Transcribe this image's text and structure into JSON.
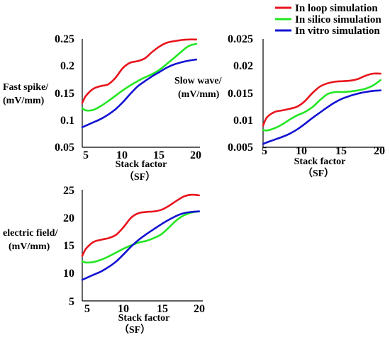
{
  "legend": {
    "placement": "top-right",
    "entries": [
      {
        "label": "In loop simulation",
        "color": "#e8141c"
      },
      {
        "label": "In silico simulation",
        "color": "#22e622"
      },
      {
        "label": "In vitro simulation",
        "color": "#1212d2"
      }
    ]
  },
  "chart_data": [
    {
      "type": "line",
      "ylabel": [
        "Fast spike/",
        "(mV/mm)"
      ],
      "xlabel": [
        "Stack factor",
        "（SF）"
      ],
      "xticks": [
        5,
        10,
        15,
        20
      ],
      "yticks": [
        "0.05",
        "0.1",
        "0.15",
        "0.2",
        "0.25"
      ],
      "xlim": [
        4.5,
        20.5
      ],
      "ylim": [
        0.05,
        0.25
      ],
      "grid": false,
      "series": [
        {
          "name": "In loop simulation",
          "color": "#e8141c",
          "x": [
            4.5,
            5,
            6,
            7,
            8,
            9,
            10,
            11,
            12,
            13,
            14,
            15,
            16,
            17,
            18,
            19,
            20
          ],
          "y": [
            0.132,
            0.145,
            0.158,
            0.163,
            0.166,
            0.178,
            0.196,
            0.206,
            0.209,
            0.214,
            0.226,
            0.236,
            0.243,
            0.246,
            0.248,
            0.249,
            0.249
          ]
        },
        {
          "name": "In silico simulation",
          "color": "#22e622",
          "x": [
            4.5,
            5,
            6,
            7,
            8,
            9,
            10,
            11,
            12,
            13,
            14,
            15,
            16,
            17,
            18,
            19,
            20
          ],
          "y": [
            0.122,
            0.118,
            0.119,
            0.126,
            0.135,
            0.145,
            0.155,
            0.164,
            0.172,
            0.179,
            0.185,
            0.193,
            0.204,
            0.215,
            0.227,
            0.237,
            0.241
          ]
        },
        {
          "name": "In vitro simulation",
          "color": "#1212d2",
          "x": [
            4.5,
            5,
            6,
            7,
            8,
            9,
            10,
            11,
            12,
            13,
            14,
            15,
            16,
            17,
            18,
            19,
            20
          ],
          "y": [
            0.087,
            0.09,
            0.096,
            0.102,
            0.11,
            0.12,
            0.133,
            0.148,
            0.162,
            0.172,
            0.181,
            0.189,
            0.197,
            0.203,
            0.207,
            0.21,
            0.212
          ]
        }
      ]
    },
    {
      "type": "line",
      "ylabel": [
        "Slow wave/",
        "(mV/mm)"
      ],
      "xlabel": [
        "Stack factor",
        "（SF）"
      ],
      "xticks": [
        5,
        10,
        15,
        20
      ],
      "yticks": [
        "0.005",
        "0.01",
        "0.015",
        "0.02",
        "0.025"
      ],
      "xlim": [
        4.5,
        20.5
      ],
      "ylim": [
        0.005,
        0.025
      ],
      "grid": false,
      "series": [
        {
          "name": "In loop simulation",
          "color": "#e8141c",
          "x": [
            4.5,
            5,
            6,
            7,
            8,
            9,
            10,
            11,
            12,
            13,
            14,
            15,
            16,
            17,
            18,
            19,
            20
          ],
          "y": [
            0.009,
            0.0105,
            0.0115,
            0.0118,
            0.0121,
            0.0125,
            0.0135,
            0.015,
            0.0162,
            0.0168,
            0.0171,
            0.0172,
            0.0173,
            0.0176,
            0.0182,
            0.0186,
            0.0186
          ]
        },
        {
          "name": "In silico simulation",
          "color": "#22e622",
          "x": [
            4.5,
            5,
            6,
            7,
            8,
            9,
            10,
            11,
            12,
            13,
            14,
            15,
            16,
            17,
            18,
            19,
            20
          ],
          "y": [
            0.0082,
            0.0081,
            0.0085,
            0.0092,
            0.0101,
            0.0109,
            0.0115,
            0.0124,
            0.0137,
            0.0148,
            0.0152,
            0.0152,
            0.0153,
            0.0155,
            0.0158,
            0.0164,
            0.0174
          ]
        },
        {
          "name": "In vitro simulation",
          "color": "#1212d2",
          "x": [
            4.5,
            5,
            6,
            7,
            8,
            9,
            10,
            11,
            12,
            13,
            14,
            15,
            16,
            17,
            18,
            19,
            20
          ],
          "y": [
            0.0056,
            0.0059,
            0.0064,
            0.0069,
            0.0075,
            0.0083,
            0.0093,
            0.0104,
            0.0114,
            0.0124,
            0.0133,
            0.014,
            0.0145,
            0.0149,
            0.0152,
            0.0154,
            0.0155
          ]
        }
      ]
    },
    {
      "type": "line",
      "ylabel": [
        "electric field/",
        "(mV/mm)"
      ],
      "xlabel": [
        "Stack factor",
        "（SF）"
      ],
      "xticks": [
        5,
        10,
        15,
        20
      ],
      "yticks": [
        "5",
        "10",
        "15",
        "20",
        "25"
      ],
      "xlim": [
        4.5,
        20.5
      ],
      "ylim": [
        5,
        25
      ],
      "grid": false,
      "series": [
        {
          "name": "In loop simulation",
          "color": "#e8141c",
          "x": [
            4.5,
            5,
            6,
            7,
            8,
            9,
            10,
            11,
            12,
            13,
            14,
            15,
            16,
            17,
            18,
            19,
            20
          ],
          "y": [
            13.1,
            14.4,
            15.6,
            16.0,
            16.3,
            16.9,
            18.3,
            20.0,
            20.8,
            21.0,
            21.1,
            21.4,
            22.1,
            23.0,
            23.8,
            24.1,
            24.0
          ]
        },
        {
          "name": "In silico simulation",
          "color": "#22e622",
          "x": [
            4.5,
            5,
            6,
            7,
            8,
            9,
            10,
            11,
            12,
            13,
            14,
            15,
            16,
            17,
            18,
            19,
            20
          ],
          "y": [
            12.1,
            11.9,
            12.0,
            12.4,
            13.0,
            13.7,
            14.4,
            15.0,
            15.5,
            15.8,
            16.3,
            17.0,
            18.2,
            19.5,
            20.4,
            20.9,
            21.1
          ]
        },
        {
          "name": "In vitro simulation",
          "color": "#1212d2",
          "x": [
            4.5,
            5,
            6,
            7,
            8,
            9,
            10,
            11,
            12,
            13,
            14,
            15,
            16,
            17,
            18,
            19,
            20
          ],
          "y": [
            8.8,
            9.1,
            9.7,
            10.3,
            11.1,
            12.1,
            13.4,
            14.8,
            16.0,
            17.0,
            17.9,
            18.8,
            19.6,
            20.3,
            20.8,
            21.0,
            21.1
          ]
        }
      ]
    }
  ]
}
